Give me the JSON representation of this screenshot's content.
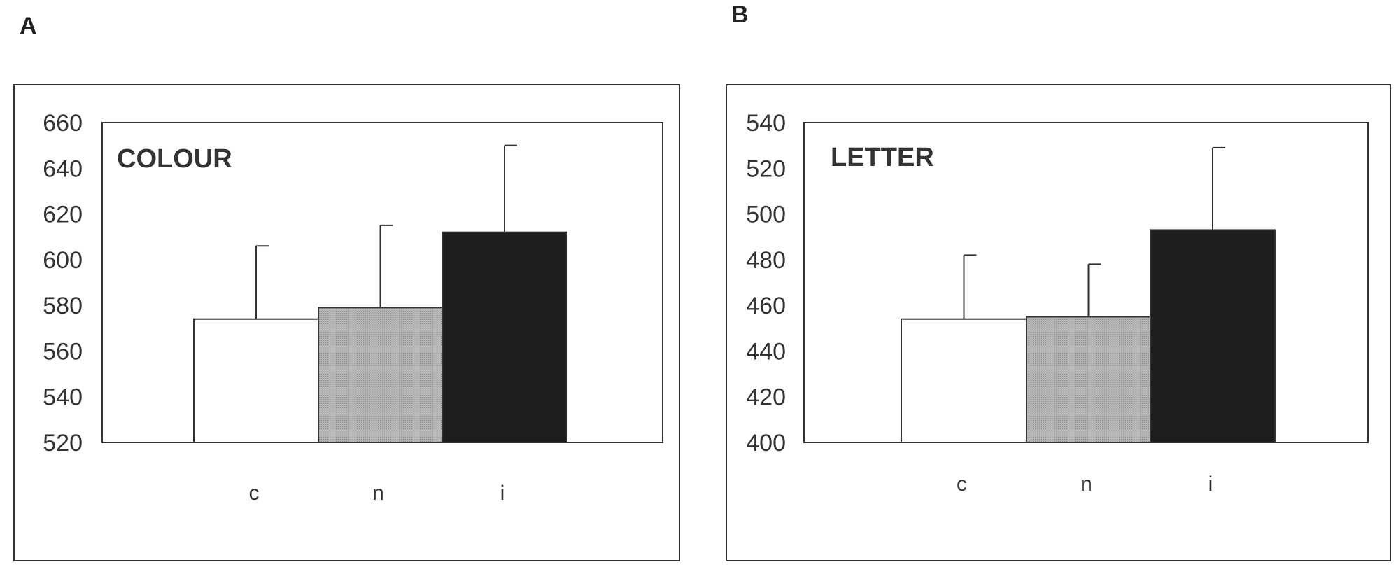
{
  "chart_data": [
    {
      "type": "bar",
      "panel_label": "A",
      "title": "COLOUR",
      "categories": [
        "c",
        "n",
        "i"
      ],
      "values": [
        574,
        579,
        612
      ],
      "error_upper": [
        606,
        615,
        650
      ],
      "yticks": [
        520,
        540,
        560,
        580,
        600,
        620,
        640,
        660
      ],
      "ylim": [
        520,
        660
      ],
      "bar_colors": [
        "#ffffff",
        "#a8a8a8",
        "#1e1e1e"
      ],
      "grid": false
    },
    {
      "type": "bar",
      "panel_label": "B",
      "title": "LETTER",
      "categories": [
        "c",
        "n",
        "i"
      ],
      "values": [
        454,
        455,
        493
      ],
      "error_upper": [
        482,
        478,
        529
      ],
      "yticks": [
        400,
        420,
        440,
        460,
        480,
        500,
        520,
        540
      ],
      "ylim": [
        400,
        540
      ],
      "bar_colors": [
        "#ffffff",
        "#a8a8a8",
        "#1e1e1e"
      ],
      "grid": false
    }
  ]
}
